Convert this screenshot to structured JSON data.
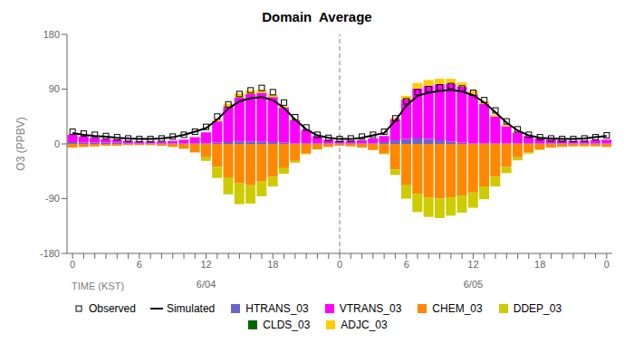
{
  "chart_data": {
    "type": "bar",
    "title": "Domain  Average",
    "ylabel": "O3 (PPBV)",
    "xlabel": "TIME (KST)",
    "categories": [
      "0",
      null,
      null,
      null,
      null,
      null,
      "6",
      null,
      null,
      null,
      null,
      null,
      "12",
      null,
      null,
      null,
      null,
      null,
      "18",
      null,
      null,
      null,
      null,
      null,
      "0",
      null,
      null,
      null,
      null,
      null,
      "6",
      null,
      null,
      null,
      null,
      null,
      "12",
      null,
      null,
      null,
      null,
      null,
      "18",
      null,
      null,
      null,
      null,
      null,
      "0"
    ],
    "ylim": [
      -180,
      180
    ],
    "yticks": [
      -180,
      -90,
      0,
      90,
      180
    ],
    "grid": false,
    "stacked": true,
    "annotations": [
      {
        "text": "6/04",
        "x": 12
      },
      {
        "text": "6/05",
        "x": 36
      },
      {
        "type": "vline",
        "x": 24,
        "color": "#808080",
        "line_style": "dashed"
      }
    ],
    "series": [
      {
        "name": "Observed",
        "type": "scatter",
        "marker": "square",
        "color": "#000000",
        "values": [
          20,
          17,
          15,
          13,
          11,
          9,
          8,
          8,
          9,
          12,
          15,
          20,
          28,
          45,
          65,
          82,
          88,
          92,
          85,
          68,
          44,
          27,
          15,
          10,
          8,
          9,
          12,
          15,
          20,
          42,
          70,
          85,
          90,
          93,
          95,
          91,
          84,
          72,
          55,
          37,
          24,
          15,
          11,
          9,
          8,
          8,
          9,
          11,
          14
        ]
      },
      {
        "name": "Simulated",
        "type": "line",
        "line_style": "solid",
        "color": "#000000",
        "values": [
          18,
          15,
          13,
          12,
          10,
          9,
          8,
          8,
          9,
          11,
          15,
          20,
          26,
          40,
          58,
          70,
          75,
          77,
          72,
          59,
          40,
          24,
          14,
          10,
          8,
          8,
          10,
          14,
          18,
          38,
          63,
          79,
          84,
          87,
          89,
          86,
          80,
          68,
          52,
          35,
          22,
          14,
          10,
          9,
          8,
          8,
          9,
          11,
          13
        ]
      },
      {
        "name": "HTRANS_03",
        "type": "bar",
        "color": "#6666cc",
        "values": [
          3,
          2,
          2,
          2,
          2,
          1,
          1,
          1,
          1,
          1,
          1,
          1,
          1,
          2,
          3,
          4,
          4,
          4,
          3,
          2,
          1,
          1,
          1,
          1,
          1,
          1,
          1,
          1,
          3,
          6,
          8,
          9,
          8,
          6,
          4,
          2,
          1,
          1,
          1,
          1,
          1,
          1,
          1,
          1,
          1,
          1,
          1,
          1,
          1
        ]
      },
      {
        "name": "VTRANS_03",
        "type": "bar",
        "color": "#ff00ff",
        "values": [
          12,
          10,
          8,
          6,
          5,
          4,
          3,
          3,
          3,
          4,
          6,
          10,
          18,
          35,
          58,
          72,
          78,
          80,
          74,
          58,
          38,
          22,
          12,
          6,
          4,
          4,
          5,
          8,
          10,
          35,
          65,
          82,
          88,
          92,
          95,
          92,
          80,
          65,
          44,
          28,
          18,
          12,
          8,
          6,
          5,
          4,
          4,
          5,
          6
        ]
      },
      {
        "name": "CHEM_03",
        "type": "bar",
        "color": "#ff8800",
        "values": [
          -6,
          -5,
          -4,
          -3,
          -3,
          -2,
          -2,
          -2,
          -3,
          -5,
          -8,
          -14,
          -22,
          -38,
          -55,
          -65,
          -68,
          -62,
          -54,
          -40,
          -28,
          -16,
          -9,
          -5,
          -3,
          -4,
          -6,
          -10,
          -16,
          -42,
          -68,
          -82,
          -88,
          -90,
          -88,
          -85,
          -80,
          -70,
          -54,
          -38,
          -22,
          -14,
          -9,
          -6,
          -5,
          -4,
          -4,
          -4,
          -5
        ]
      },
      {
        "name": "DDEP_03",
        "type": "bar",
        "color": "#cccc00",
        "values": [
          0,
          0,
          0,
          0,
          0,
          0,
          0,
          0,
          0,
          0,
          0,
          0,
          -6,
          -18,
          -28,
          -34,
          -30,
          -24,
          -16,
          -9,
          -3,
          -1,
          0,
          0,
          0,
          0,
          0,
          0,
          -1,
          -9,
          -22,
          -30,
          -32,
          -32,
          -30,
          -28,
          -25,
          -21,
          -16,
          -10,
          -5,
          -2,
          -1,
          0,
          0,
          0,
          0,
          0,
          0
        ]
      },
      {
        "name": "CLDS_03",
        "type": "bar",
        "color": "#006600",
        "values": [
          0,
          0,
          0,
          0,
          0,
          0,
          0,
          0,
          0,
          0,
          0,
          0,
          0,
          0,
          0,
          0,
          0,
          0,
          0,
          0,
          0,
          0,
          0,
          0,
          0,
          0,
          0,
          0,
          0,
          0,
          0,
          0,
          0,
          0,
          0,
          0,
          0,
          0,
          0,
          0,
          0,
          0,
          0,
          0,
          0,
          0,
          0,
          0,
          0
        ]
      },
      {
        "name": "ADJC_03",
        "type": "bar",
        "color": "#ffcc00",
        "values": [
          0,
          0,
          0,
          0,
          0,
          0,
          0,
          0,
          0,
          0,
          0,
          0,
          0,
          2,
          5,
          7,
          6,
          5,
          4,
          2,
          1,
          0,
          0,
          0,
          0,
          0,
          0,
          0,
          0,
          2,
          6,
          9,
          9,
          9,
          8,
          7,
          6,
          4,
          3,
          2,
          1,
          0,
          0,
          0,
          0,
          0,
          0,
          0,
          0
        ]
      }
    ]
  }
}
